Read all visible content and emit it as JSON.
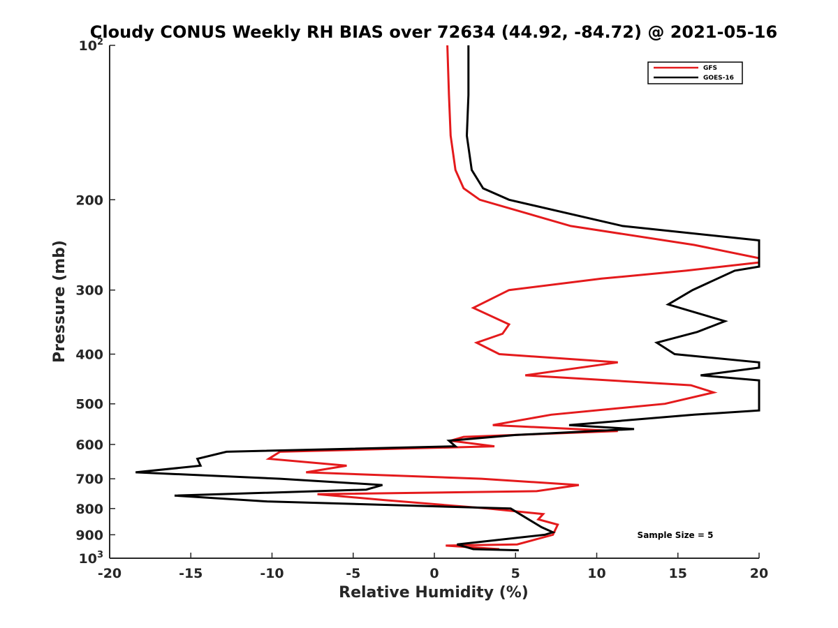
{
  "chart_data": {
    "type": "line",
    "title": "Cloudy CONUS Weekly RH BIAS over 72634 (44.92, -84.72) @ 2021-05-16",
    "xlabel": "Relative Humidity (%)",
    "ylabel": "Pressure (mb)",
    "xlim": [
      -20,
      20
    ],
    "ylim": [
      100,
      1000
    ],
    "y_scale": "log",
    "y_reversed": true,
    "grid": false,
    "legend_position": "top-right",
    "x_ticks": [
      "-20",
      "-15",
      "-10",
      "-5",
      "0",
      "5",
      "10",
      "15",
      "20"
    ],
    "y_ticks": [
      {
        "value": 100,
        "label": "10",
        "sup": "2"
      },
      {
        "value": 200,
        "label": "200",
        "sup": ""
      },
      {
        "value": 300,
        "label": "300",
        "sup": ""
      },
      {
        "value": 400,
        "label": "400",
        "sup": ""
      },
      {
        "value": 500,
        "label": "500",
        "sup": ""
      },
      {
        "value": 600,
        "label": "600",
        "sup": ""
      },
      {
        "value": 700,
        "label": "700",
        "sup": ""
      },
      {
        "value": 800,
        "label": "800",
        "sup": ""
      },
      {
        "value": 900,
        "label": "900",
        "sup": ""
      },
      {
        "value": 1000,
        "label": "10",
        "sup": "3"
      }
    ],
    "series": [
      {
        "name": "GFS",
        "color": "#e41a1c",
        "points": [
          [
            0.8,
            100
          ],
          [
            0.9,
            125
          ],
          [
            1.0,
            150
          ],
          [
            1.3,
            175
          ],
          [
            1.8,
            190
          ],
          [
            2.8,
            200
          ],
          [
            8.4,
            225
          ],
          [
            16.0,
            245
          ],
          [
            20.0,
            260
          ],
          [
            20.0,
            265
          ],
          [
            15.5,
            275
          ],
          [
            10.3,
            285
          ],
          [
            4.6,
            300
          ],
          [
            2.4,
            325
          ],
          [
            4.6,
            350
          ],
          [
            4.2,
            365
          ],
          [
            2.6,
            380
          ],
          [
            4.0,
            400
          ],
          [
            11.3,
            415
          ],
          [
            5.6,
            440
          ],
          [
            15.8,
            460
          ],
          [
            17.2,
            475
          ],
          [
            14.2,
            500
          ],
          [
            7.2,
            525
          ],
          [
            3.6,
            550
          ],
          [
            11.3,
            565
          ],
          [
            1.8,
            580
          ],
          [
            1.0,
            590
          ],
          [
            3.7,
            605
          ],
          [
            -9.5,
            620
          ],
          [
            -10.2,
            640
          ],
          [
            -5.4,
            660
          ],
          [
            -7.9,
            680
          ],
          [
            2.9,
            700
          ],
          [
            8.9,
            720
          ],
          [
            6.3,
            740
          ],
          [
            -7.2,
            750
          ],
          [
            -3.1,
            770
          ],
          [
            3.3,
            800
          ],
          [
            6.7,
            820
          ],
          [
            6.4,
            840
          ],
          [
            7.6,
            860
          ],
          [
            7.3,
            900
          ],
          [
            5.1,
            940
          ],
          [
            0.7,
            945
          ],
          [
            4.0,
            960
          ]
        ]
      },
      {
        "name": "GOES-16",
        "color": "#000000",
        "points": [
          [
            2.1,
            100
          ],
          [
            2.1,
            125
          ],
          [
            2.0,
            150
          ],
          [
            2.3,
            175
          ],
          [
            3.0,
            190
          ],
          [
            4.6,
            200
          ],
          [
            11.6,
            225
          ],
          [
            20.0,
            240
          ],
          [
            20.0,
            270
          ],
          [
            18.5,
            275
          ],
          [
            15.9,
            300
          ],
          [
            14.4,
            320
          ],
          [
            17.9,
            345
          ],
          [
            16.2,
            362
          ],
          [
            13.7,
            380
          ],
          [
            14.8,
            400
          ],
          [
            20.0,
            415
          ],
          [
            20.0,
            425
          ],
          [
            16.4,
            440
          ],
          [
            20.0,
            450
          ],
          [
            20.0,
            515
          ],
          [
            16.0,
            525
          ],
          [
            8.3,
            550
          ],
          [
            12.3,
            560
          ],
          [
            5.0,
            575
          ],
          [
            0.9,
            590
          ],
          [
            1.3,
            605
          ],
          [
            -12.8,
            620
          ],
          [
            -14.6,
            640
          ],
          [
            -14.4,
            660
          ],
          [
            -18.4,
            680
          ],
          [
            -9.5,
            700
          ],
          [
            -3.2,
            720
          ],
          [
            -4.2,
            735
          ],
          [
            -16.0,
            755
          ],
          [
            -10.3,
            775
          ],
          [
            4.7,
            800
          ],
          [
            5.8,
            840
          ],
          [
            6.6,
            870
          ],
          [
            7.3,
            890
          ],
          [
            6.8,
            900
          ],
          [
            1.4,
            940
          ],
          [
            2.4,
            960
          ],
          [
            5.2,
            965
          ]
        ]
      }
    ],
    "annotation": "Sample Size = 5"
  }
}
